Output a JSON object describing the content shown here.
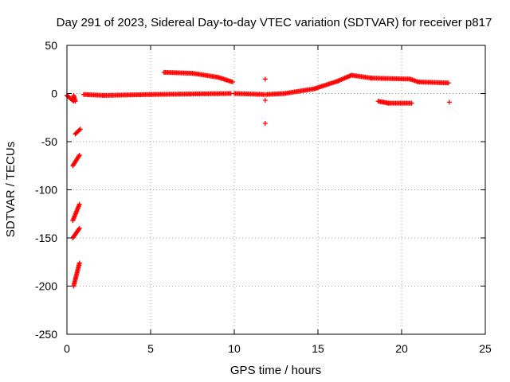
{
  "chart_data": {
    "type": "scatter",
    "title": "Day 291 of 2023, Sidereal Day-to-day VTEC variation (SDTVAR) for receiver p817",
    "xlabel": "GPS time / hours",
    "ylabel": "SDTVAR / TECUs",
    "xlim": [
      0,
      25
    ],
    "ylim": [
      -250,
      50
    ],
    "xticks": [
      0,
      5,
      10,
      15,
      20,
      25
    ],
    "yticks": [
      50,
      0,
      -50,
      -100,
      -150,
      -200,
      -250
    ],
    "xtick_labels": [
      "0",
      "5",
      "10",
      "15",
      "20",
      "25"
    ],
    "ytick_labels": [
      "50",
      "0",
      "-50",
      "-100",
      "-150",
      "-200",
      "-250"
    ],
    "grid": true,
    "marker": "plus",
    "color": "#ff0000",
    "series": [
      {
        "name": "SDTVAR",
        "segments": [
          {
            "from": [
              0.0,
              -2
            ],
            "to": [
              0.4,
              -8
            ]
          },
          {
            "from": [
              0.4,
              -2
            ],
            "to": [
              0.5,
              -8
            ]
          },
          {
            "from": [
              0.5,
              -42
            ],
            "to": [
              0.8,
              -37
            ]
          },
          {
            "from": [
              0.35,
              -75
            ],
            "to": [
              0.75,
              -64
            ]
          },
          {
            "from": [
              0.35,
              -132
            ],
            "to": [
              0.75,
              -115
            ]
          },
          {
            "from": [
              0.35,
              -150
            ],
            "to": [
              0.75,
              -140
            ]
          },
          {
            "from": [
              0.4,
              -200
            ],
            "to": [
              0.75,
              -176
            ]
          },
          {
            "from": [
              1.0,
              -1
            ],
            "to": [
              2.2,
              -2
            ]
          },
          {
            "from": [
              2.2,
              -2
            ],
            "to": [
              5.0,
              -1
            ]
          },
          {
            "from": [
              5.0,
              -1
            ],
            "to": [
              9.8,
              0
            ]
          },
          {
            "from": [
              5.8,
              22
            ],
            "to": [
              7.5,
              21
            ]
          },
          {
            "from": [
              7.5,
              21
            ],
            "to": [
              9.0,
              17
            ]
          },
          {
            "from": [
              9.0,
              17
            ],
            "to": [
              9.9,
              12
            ]
          },
          {
            "from": [
              10.0,
              0
            ],
            "to": [
              11.8,
              -1
            ]
          },
          {
            "from": [
              11.9,
              -1
            ],
            "to": [
              13.0,
              0
            ]
          },
          {
            "from": [
              13.0,
              0
            ],
            "to": [
              14.8,
              5
            ]
          },
          {
            "from": [
              14.8,
              5
            ],
            "to": [
              16.2,
              13
            ]
          },
          {
            "from": [
              16.2,
              13
            ],
            "to": [
              17.0,
              19
            ]
          },
          {
            "from": [
              17.0,
              19
            ],
            "to": [
              18.2,
              16
            ]
          },
          {
            "from": [
              18.2,
              16
            ],
            "to": [
              20.5,
              15
            ]
          },
          {
            "from": [
              20.5,
              15
            ],
            "to": [
              21.0,
              12
            ]
          },
          {
            "from": [
              21.0,
              12
            ],
            "to": [
              22.8,
              11
            ]
          },
          {
            "from": [
              18.6,
              -8
            ],
            "to": [
              19.2,
              -10
            ]
          },
          {
            "from": [
              19.2,
              -10
            ],
            "to": [
              20.6,
              -10
            ]
          }
        ],
        "points": [
          [
            11.85,
            15
          ],
          [
            11.85,
            -7
          ],
          [
            11.85,
            -31
          ],
          [
            22.85,
            -9
          ]
        ]
      }
    ]
  }
}
